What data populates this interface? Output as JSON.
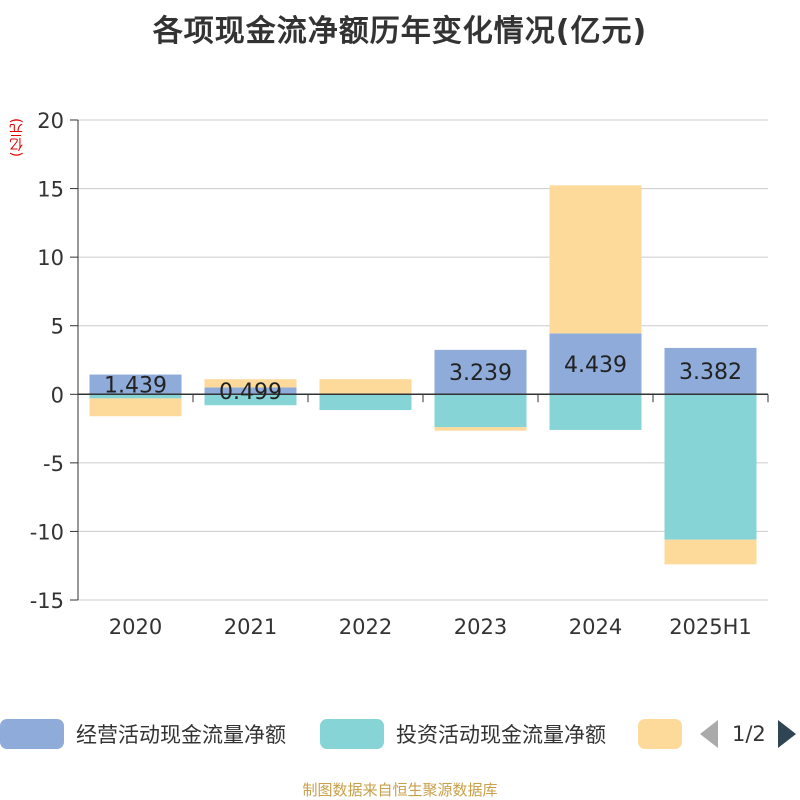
{
  "title": "各项现金流净额历年变化情况(亿元)",
  "unit": "(亿元)",
  "source": "制图数据来自恒生聚源数据库",
  "legend_page": "1/2",
  "chart_data": {
    "type": "bar",
    "stacked": true,
    "title": "各项现金流净额历年变化情况(亿元)",
    "ylabel": "(亿元)",
    "xlabel": "",
    "ylim": [
      -15,
      20
    ],
    "yticks": [
      20,
      15,
      10,
      5,
      0,
      -5,
      -10,
      -15
    ],
    "grid": true,
    "legend_placement": "bottom",
    "categories": [
      "2020",
      "2021",
      "2022",
      "2023",
      "2024",
      "2025H1"
    ],
    "series": [
      {
        "name": "经营活动现金流量净额",
        "color": "#8eabd9",
        "values": [
          1.439,
          0.499,
          -0.05,
          3.239,
          4.439,
          3.382
        ],
        "labels": [
          "1.439",
          "0.499",
          "",
          "3.239",
          "4.439",
          "3.382"
        ]
      },
      {
        "name": "投资活动现金流量净额",
        "color": "#86d4d6",
        "values": [
          -0.3,
          -0.8,
          -1.1,
          -2.4,
          -2.6,
          -10.6
        ],
        "labels": [
          "",
          "",
          "",
          "",
          "",
          ""
        ]
      },
      {
        "name": "",
        "color": "#fdd99a",
        "values": [
          -1.3,
          0.6,
          1.1,
          -0.25,
          10.8,
          -1.8
        ],
        "labels": [
          "",
          "",
          "",
          "",
          "",
          ""
        ]
      }
    ]
  }
}
